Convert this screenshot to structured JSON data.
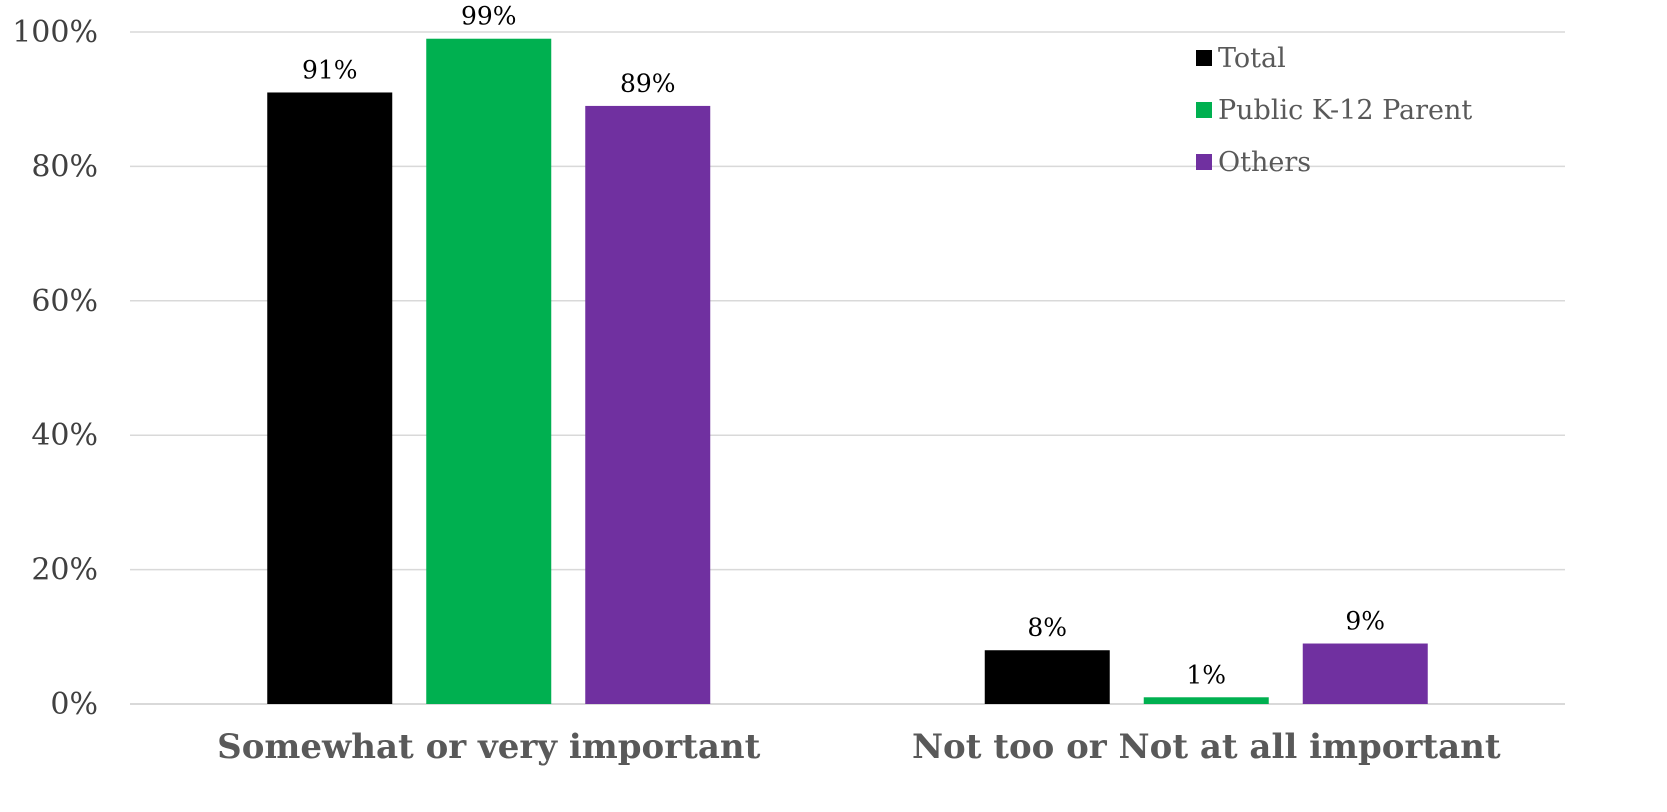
{
  "chart_data": {
    "type": "bar",
    "title": "",
    "xlabel": "",
    "ylabel": "",
    "categories": [
      "Somewhat or very important",
      "Not too or Not at all important"
    ],
    "series": [
      {
        "name": "Total",
        "color": "#000000",
        "values": [
          91,
          8
        ],
        "labels": [
          "91%",
          "8%"
        ]
      },
      {
        "name": "Public K-12 Parent",
        "color": "#00b050",
        "values": [
          99,
          1
        ],
        "labels": [
          "99%",
          "1%"
        ]
      },
      {
        "name": "Others",
        "color": "#7030a0",
        "values": [
          89,
          9
        ],
        "labels": [
          "89%",
          "9%"
        ]
      }
    ],
    "ylim": [
      0,
      100
    ],
    "yticks": [
      0,
      20,
      40,
      60,
      80,
      100
    ],
    "ytick_labels": [
      "0%",
      "20%",
      "40%",
      "60%",
      "80%",
      "100%"
    ],
    "grid": true,
    "legend_position": "top-right"
  }
}
